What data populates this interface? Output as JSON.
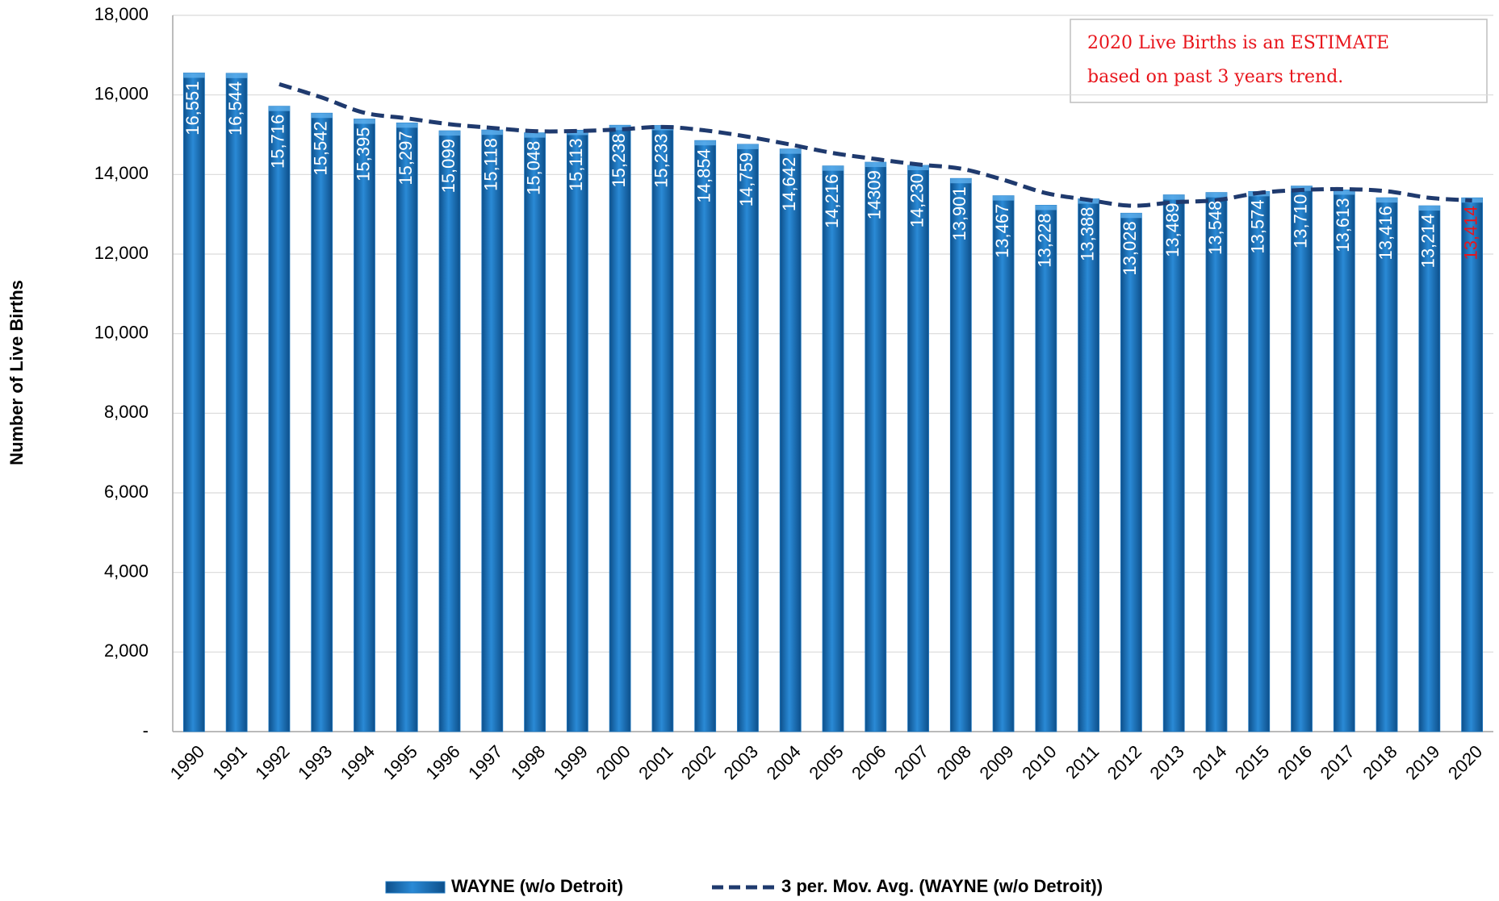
{
  "chart_data": {
    "type": "bar",
    "y_axis_label": "Number of Live Births",
    "annotation": [
      "2020 Live Births is an ESTIMATE",
      "based on past 3 years trend."
    ],
    "categories": [
      "1990",
      "1991",
      "1992",
      "1993",
      "1994",
      "1995",
      "1996",
      "1997",
      "1998",
      "1999",
      "2000",
      "2001",
      "2002",
      "2003",
      "2004",
      "2005",
      "2006",
      "2007",
      "2008",
      "2009",
      "2010",
      "2011",
      "2012",
      "2013",
      "2014",
      "2015",
      "2016",
      "2017",
      "2018",
      "2019",
      "2020"
    ],
    "series": [
      {
        "name": "WAYNE (w/o Detroit)",
        "color": "#1f78c1",
        "values": [
          16551,
          16544,
          15716,
          15542,
          15395,
          15297,
          15099,
          15118,
          15048,
          15113,
          15238,
          15233,
          14854,
          14759,
          14642,
          14216,
          14309,
          14230,
          13901,
          13467,
          13228,
          13388,
          13028,
          13489,
          13548,
          13574,
          13710,
          13613,
          13416,
          13214,
          13414
        ],
        "value_labels": [
          "16,551",
          "16,544",
          "15,716",
          "15,542",
          "15,395",
          "15,297",
          "15,099",
          "15,118",
          "15,048",
          "15,113",
          "15,238",
          "15,233",
          "14,854",
          "14,759",
          "14,642",
          "14,216",
          "14309",
          "14,230",
          "13,901",
          "13,467",
          "13,228",
          "13,388",
          "13,028",
          "13,489",
          "13,548",
          "13,574",
          "13,710",
          "13,613",
          "13,416",
          "13,214",
          "13,414"
        ]
      },
      {
        "name": "3 per. Mov. Avg. (WAYNE (w/o Detroit))",
        "color": "#1f3a6e",
        "type": "line",
        "values": [
          null,
          null,
          16270,
          15934,
          15551,
          15411,
          15264,
          15171,
          15088,
          15093,
          15133,
          15195,
          15108,
          14949,
          14752,
          14539,
          14389,
          14252,
          14147,
          13866,
          13532,
          13361,
          13215,
          13302,
          13355,
          13537,
          13611,
          13632,
          13580,
          13414,
          13348
        ]
      }
    ],
    "ylim": [
      0,
      18000
    ],
    "yticks": [
      {
        "value": 0,
        "label": "-"
      },
      {
        "value": 2000,
        "label": "2,000"
      },
      {
        "value": 4000,
        "label": "4,000"
      },
      {
        "value": 6000,
        "label": "6,000"
      },
      {
        "value": 8000,
        "label": "8,000"
      },
      {
        "value": 10000,
        "label": "10,000"
      },
      {
        "value": 12000,
        "label": "12,000"
      },
      {
        "value": 14000,
        "label": "14,000"
      },
      {
        "value": 16000,
        "label": "16,000"
      },
      {
        "value": 18000,
        "label": "18,000"
      }
    ],
    "grid": true,
    "legend": "bottom"
  }
}
